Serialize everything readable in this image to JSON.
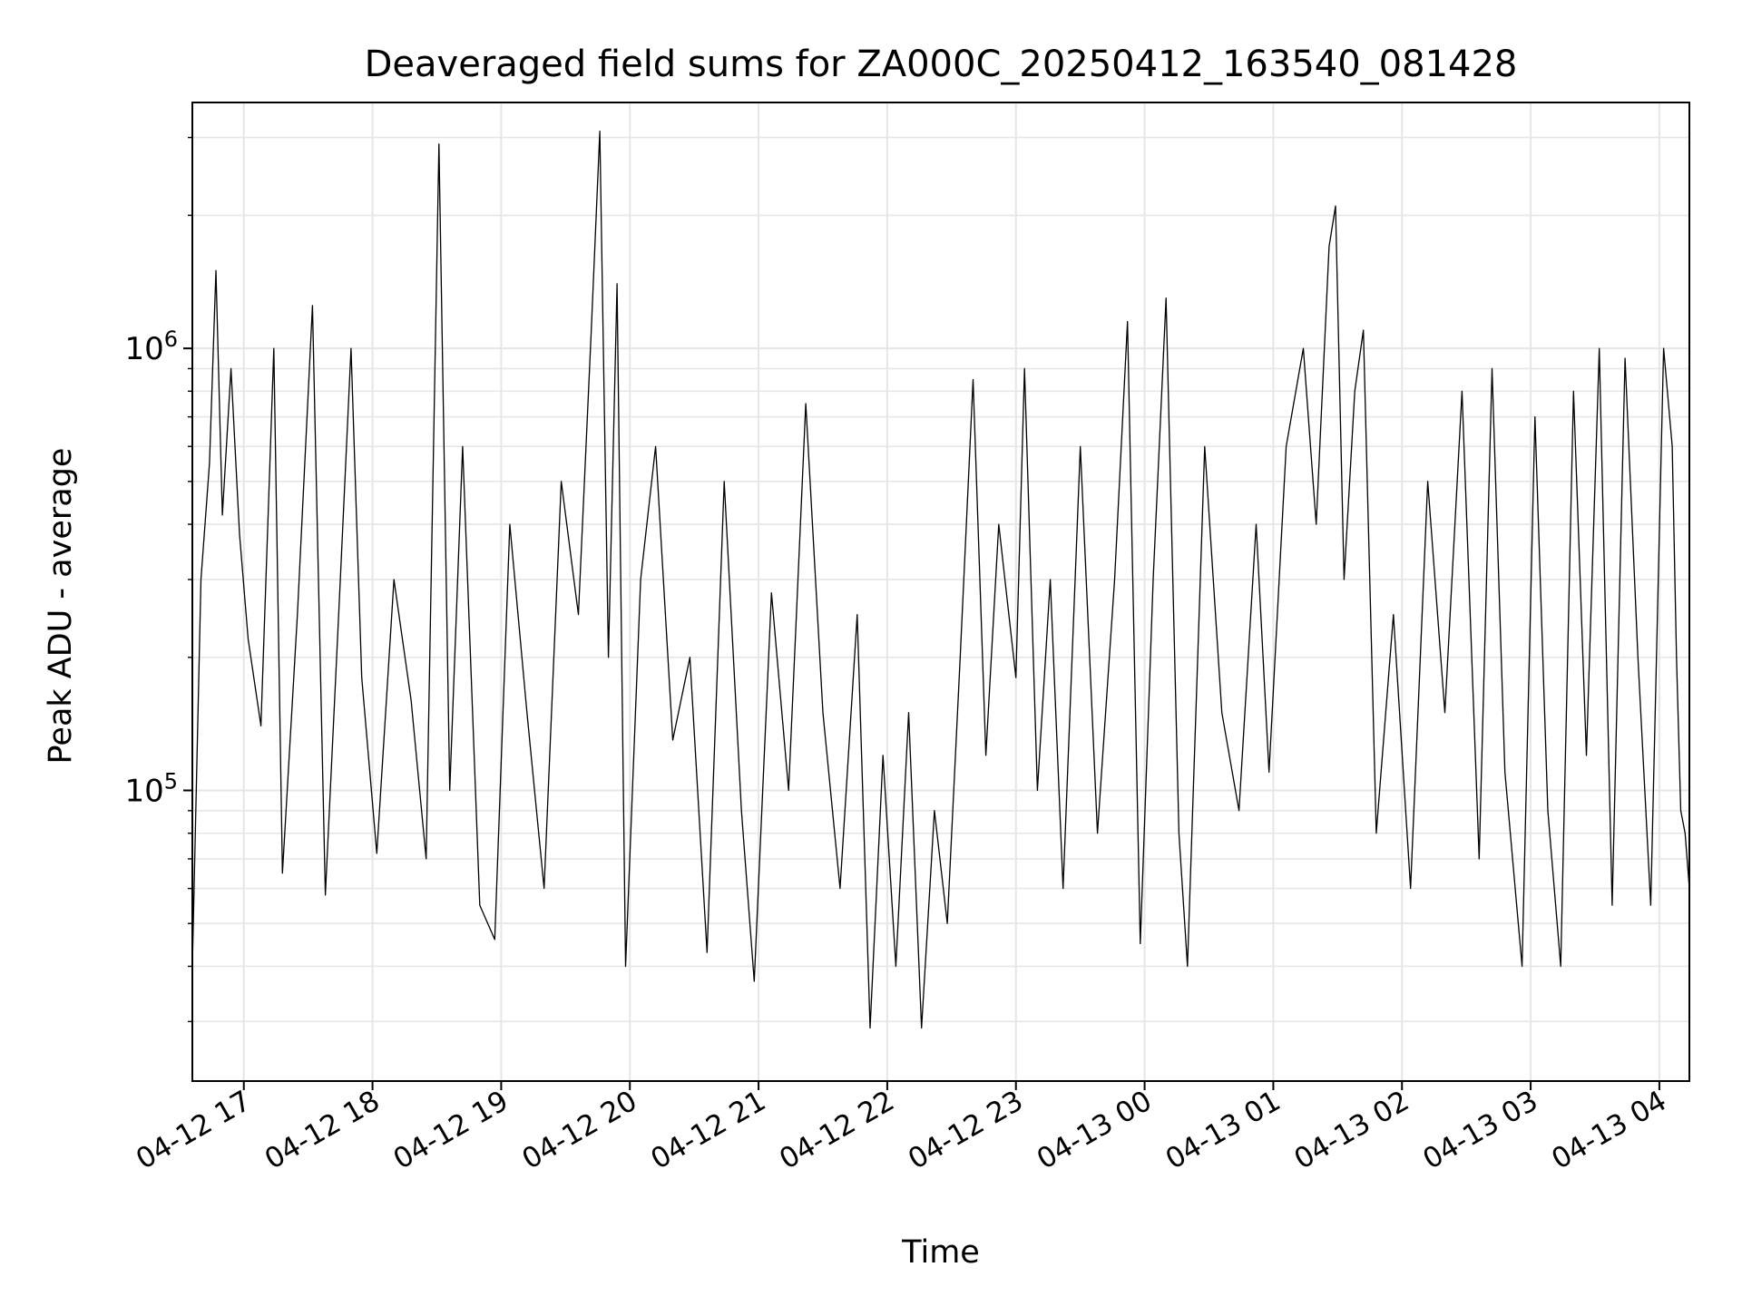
{
  "chart_data": {
    "type": "line",
    "title": "Deaveraged field sums for ZA000C_20250412_163540_081428",
    "xlabel": "Time",
    "ylabel": "Peak ADU - average",
    "xlim": [
      "2025-04-12 16:36",
      "2025-04-13 04:14"
    ],
    "ylim": [
      22000,
      3600000
    ],
    "yscale": "log",
    "grid": true,
    "x_ticks": [
      {
        "t": "2025-04-12 17:00",
        "label": "04-12 17"
      },
      {
        "t": "2025-04-12 18:00",
        "label": "04-12 18"
      },
      {
        "t": "2025-04-12 19:00",
        "label": "04-12 19"
      },
      {
        "t": "2025-04-12 20:00",
        "label": "04-12 20"
      },
      {
        "t": "2025-04-12 21:00",
        "label": "04-12 21"
      },
      {
        "t": "2025-04-12 22:00",
        "label": "04-12 22"
      },
      {
        "t": "2025-04-12 23:00",
        "label": "04-12 23"
      },
      {
        "t": "2025-04-13 00:00",
        "label": "04-13 00"
      },
      {
        "t": "2025-04-13 01:00",
        "label": "04-13 01"
      },
      {
        "t": "2025-04-13 02:00",
        "label": "04-13 02"
      },
      {
        "t": "2025-04-13 03:00",
        "label": "04-13 03"
      },
      {
        "t": "2025-04-13 04:00",
        "label": "04-13 04"
      }
    ],
    "y_major_ticks": [
      {
        "value": 100000,
        "base": "10",
        "exp": "5"
      },
      {
        "value": 1000000,
        "base": "10",
        "exp": "6"
      }
    ],
    "line_color": "#000000",
    "series": [
      {
        "name": "",
        "points": [
          {
            "t": "2025-04-12 16:36",
            "y": 40000
          },
          {
            "t": "2025-04-12 16:40",
            "y": 300000
          },
          {
            "t": "2025-04-12 16:44",
            "y": 550000
          },
          {
            "t": "2025-04-12 16:47",
            "y": 1500000
          },
          {
            "t": "2025-04-12 16:50",
            "y": 420000
          },
          {
            "t": "2025-04-12 16:54",
            "y": 900000
          },
          {
            "t": "2025-04-12 16:58",
            "y": 380000
          },
          {
            "t": "2025-04-12 17:02",
            "y": 220000
          },
          {
            "t": "2025-04-12 17:08",
            "y": 140000
          },
          {
            "t": "2025-04-12 17:14",
            "y": 1000000
          },
          {
            "t": "2025-04-12 17:18",
            "y": 65000
          },
          {
            "t": "2025-04-12 17:25",
            "y": 250000
          },
          {
            "t": "2025-04-12 17:32",
            "y": 1250000
          },
          {
            "t": "2025-04-12 17:38",
            "y": 58000
          },
          {
            "t": "2025-04-12 17:45",
            "y": 300000
          },
          {
            "t": "2025-04-12 17:50",
            "y": 1000000
          },
          {
            "t": "2025-04-12 17:55",
            "y": 180000
          },
          {
            "t": "2025-04-12 18:02",
            "y": 72000
          },
          {
            "t": "2025-04-12 18:10",
            "y": 300000
          },
          {
            "t": "2025-04-12 18:18",
            "y": 160000
          },
          {
            "t": "2025-04-12 18:25",
            "y": 70000
          },
          {
            "t": "2025-04-12 18:31",
            "y": 2900000
          },
          {
            "t": "2025-04-12 18:36",
            "y": 100000
          },
          {
            "t": "2025-04-12 18:42",
            "y": 600000
          },
          {
            "t": "2025-04-12 18:50",
            "y": 55000
          },
          {
            "t": "2025-04-12 18:57",
            "y": 46000
          },
          {
            "t": "2025-04-12 19:04",
            "y": 400000
          },
          {
            "t": "2025-04-12 19:12",
            "y": 150000
          },
          {
            "t": "2025-04-12 19:20",
            "y": 60000
          },
          {
            "t": "2025-04-12 19:28",
            "y": 500000
          },
          {
            "t": "2025-04-12 19:36",
            "y": 250000
          },
          {
            "t": "2025-04-12 19:42",
            "y": 1100000
          },
          {
            "t": "2025-04-12 19:46",
            "y": 3100000
          },
          {
            "t": "2025-04-12 19:50",
            "y": 200000
          },
          {
            "t": "2025-04-12 19:54",
            "y": 1400000
          },
          {
            "t": "2025-04-12 19:58",
            "y": 40000
          },
          {
            "t": "2025-04-12 20:05",
            "y": 300000
          },
          {
            "t": "2025-04-12 20:12",
            "y": 600000
          },
          {
            "t": "2025-04-12 20:20",
            "y": 130000
          },
          {
            "t": "2025-04-12 20:28",
            "y": 200000
          },
          {
            "t": "2025-04-12 20:36",
            "y": 43000
          },
          {
            "t": "2025-04-12 20:44",
            "y": 500000
          },
          {
            "t": "2025-04-12 20:52",
            "y": 90000
          },
          {
            "t": "2025-04-12 20:58",
            "y": 37000
          },
          {
            "t": "2025-04-12 21:06",
            "y": 280000
          },
          {
            "t": "2025-04-12 21:14",
            "y": 100000
          },
          {
            "t": "2025-04-12 21:22",
            "y": 750000
          },
          {
            "t": "2025-04-12 21:30",
            "y": 150000
          },
          {
            "t": "2025-04-12 21:38",
            "y": 60000
          },
          {
            "t": "2025-04-12 21:46",
            "y": 250000
          },
          {
            "t": "2025-04-12 21:52",
            "y": 29000
          },
          {
            "t": "2025-04-12 21:58",
            "y": 120000
          },
          {
            "t": "2025-04-12 22:04",
            "y": 40000
          },
          {
            "t": "2025-04-12 22:10",
            "y": 150000
          },
          {
            "t": "2025-04-12 22:16",
            "y": 29000
          },
          {
            "t": "2025-04-12 22:22",
            "y": 90000
          },
          {
            "t": "2025-04-12 22:28",
            "y": 50000
          },
          {
            "t": "2025-04-12 22:34",
            "y": 200000
          },
          {
            "t": "2025-04-12 22:40",
            "y": 850000
          },
          {
            "t": "2025-04-12 22:46",
            "y": 120000
          },
          {
            "t": "2025-04-12 22:52",
            "y": 400000
          },
          {
            "t": "2025-04-12 23:00",
            "y": 180000
          },
          {
            "t": "2025-04-12 23:04",
            "y": 900000
          },
          {
            "t": "2025-04-12 23:10",
            "y": 100000
          },
          {
            "t": "2025-04-12 23:16",
            "y": 300000
          },
          {
            "t": "2025-04-12 23:22",
            "y": 60000
          },
          {
            "t": "2025-04-12 23:30",
            "y": 600000
          },
          {
            "t": "2025-04-12 23:38",
            "y": 80000
          },
          {
            "t": "2025-04-12 23:46",
            "y": 300000
          },
          {
            "t": "2025-04-12 23:52",
            "y": 1150000
          },
          {
            "t": "2025-04-12 23:58",
            "y": 45000
          },
          {
            "t": "2025-04-13 00:04",
            "y": 300000
          },
          {
            "t": "2025-04-13 00:10",
            "y": 1300000
          },
          {
            "t": "2025-04-13 00:16",
            "y": 80000
          },
          {
            "t": "2025-04-13 00:20",
            "y": 40000
          },
          {
            "t": "2025-04-13 00:28",
            "y": 600000
          },
          {
            "t": "2025-04-13 00:36",
            "y": 150000
          },
          {
            "t": "2025-04-13 00:44",
            "y": 90000
          },
          {
            "t": "2025-04-13 00:52",
            "y": 400000
          },
          {
            "t": "2025-04-13 00:58",
            "y": 110000
          },
          {
            "t": "2025-04-13 01:06",
            "y": 600000
          },
          {
            "t": "2025-04-13 01:14",
            "y": 1000000
          },
          {
            "t": "2025-04-13 01:20",
            "y": 400000
          },
          {
            "t": "2025-04-13 01:26",
            "y": 1700000
          },
          {
            "t": "2025-04-13 01:29",
            "y": 2100000
          },
          {
            "t": "2025-04-13 01:33",
            "y": 300000
          },
          {
            "t": "2025-04-13 01:38",
            "y": 800000
          },
          {
            "t": "2025-04-13 01:42",
            "y": 1100000
          },
          {
            "t": "2025-04-13 01:48",
            "y": 80000
          },
          {
            "t": "2025-04-13 01:56",
            "y": 250000
          },
          {
            "t": "2025-04-13 02:04",
            "y": 60000
          },
          {
            "t": "2025-04-13 02:12",
            "y": 500000
          },
          {
            "t": "2025-04-13 02:20",
            "y": 150000
          },
          {
            "t": "2025-04-13 02:28",
            "y": 800000
          },
          {
            "t": "2025-04-13 02:36",
            "y": 70000
          },
          {
            "t": "2025-04-13 02:42",
            "y": 900000
          },
          {
            "t": "2025-04-13 02:48",
            "y": 110000
          },
          {
            "t": "2025-04-13 02:56",
            "y": 40000
          },
          {
            "t": "2025-04-13 03:02",
            "y": 700000
          },
          {
            "t": "2025-04-13 03:08",
            "y": 90000
          },
          {
            "t": "2025-04-13 03:14",
            "y": 40000
          },
          {
            "t": "2025-04-13 03:20",
            "y": 800000
          },
          {
            "t": "2025-04-13 03:26",
            "y": 120000
          },
          {
            "t": "2025-04-13 03:32",
            "y": 1000000
          },
          {
            "t": "2025-04-13 03:38",
            "y": 55000
          },
          {
            "t": "2025-04-13 03:44",
            "y": 950000
          },
          {
            "t": "2025-04-13 03:50",
            "y": 200000
          },
          {
            "t": "2025-04-13 03:56",
            "y": 55000
          },
          {
            "t": "2025-04-13 04:02",
            "y": 1000000
          },
          {
            "t": "2025-04-13 04:06",
            "y": 600000
          },
          {
            "t": "2025-04-13 04:08",
            "y": 200000
          },
          {
            "t": "2025-04-13 04:10",
            "y": 90000
          },
          {
            "t": "2025-04-13 04:12",
            "y": 80000
          },
          {
            "t": "2025-04-13 04:14",
            "y": 60000
          }
        ]
      }
    ]
  }
}
